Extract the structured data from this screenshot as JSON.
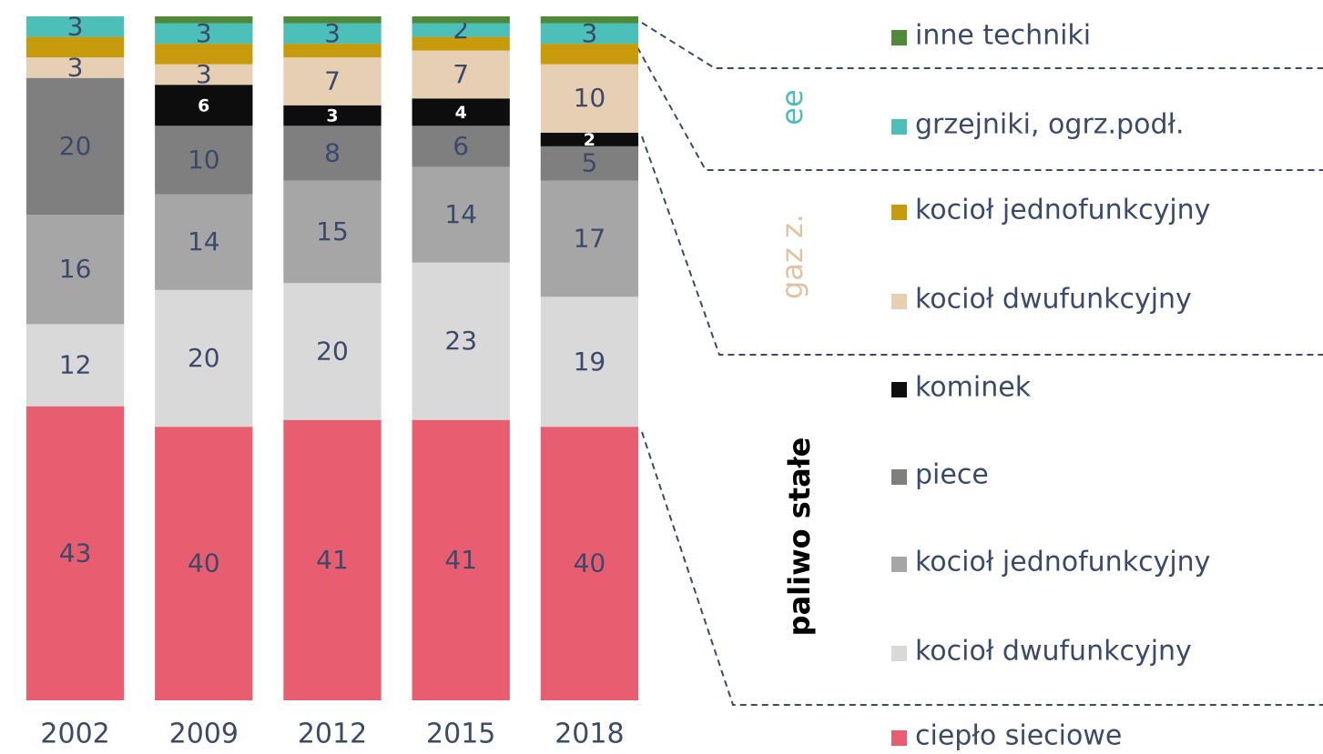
{
  "chart_data": {
    "type": "stacked_bar",
    "categories": [
      "2002",
      "2009",
      "2012",
      "2015",
      "2018"
    ],
    "ylim": [
      0,
      100
    ],
    "group_labels": [
      "ee",
      "gaz z.",
      "paliwo stałe"
    ],
    "series": [
      {
        "name": "ciepło sieciowe",
        "color": "#e85d6f",
        "values": [
          43,
          40,
          41,
          41,
          40
        ],
        "value_labels": [
          "43",
          "40",
          "41",
          "41",
          "40"
        ]
      },
      {
        "name": "kocioł dwufunkcyjny",
        "color": "#d9d9d9",
        "values": [
          12,
          20,
          20,
          23,
          19
        ],
        "value_labels": [
          "12",
          "20",
          "20",
          "23",
          "19"
        ]
      },
      {
        "name": "kocioł jednofunkcyjny",
        "color": "#a6a6a6",
        "values": [
          16,
          14,
          15,
          14,
          17
        ],
        "value_labels": [
          "16",
          "14",
          "15",
          "14",
          "17"
        ]
      },
      {
        "name": "piece",
        "color": "#7f7f7f",
        "values": [
          20,
          10,
          8,
          6,
          5
        ],
        "value_labels": [
          "20",
          "10",
          "8",
          "6",
          "5"
        ]
      },
      {
        "name": "kominek",
        "color": "#0d0d0d",
        "values": [
          0,
          6,
          3,
          4,
          2
        ],
        "value_labels": [
          null,
          "6",
          "3",
          "4",
          "2"
        ]
      },
      {
        "name": "kocioł dwufunkcyjny",
        "color": "#e6cfb3",
        "values": [
          3,
          3,
          7,
          7,
          10
        ],
        "value_labels": [
          "3",
          "3",
          "7",
          "7",
          "10"
        ]
      },
      {
        "name": "kocioł jednofunkcyjny",
        "color": "#c89b0c",
        "values": [
          3,
          3,
          2,
          2,
          3
        ],
        "value_labels": [
          null,
          null,
          null,
          null,
          null
        ]
      },
      {
        "name": "grzejniki, ogrz.podł.",
        "color": "#4bbfb8",
        "values": [
          3,
          3,
          3,
          2,
          3
        ],
        "value_labels": [
          "3",
          "3",
          "3",
          "2",
          "3"
        ]
      },
      {
        "name": "inne techniki",
        "color": "#4f8a3a",
        "values": [
          0,
          1,
          1,
          1,
          1
        ],
        "value_labels": [
          null,
          null,
          null,
          null,
          null
        ]
      }
    ]
  }
}
